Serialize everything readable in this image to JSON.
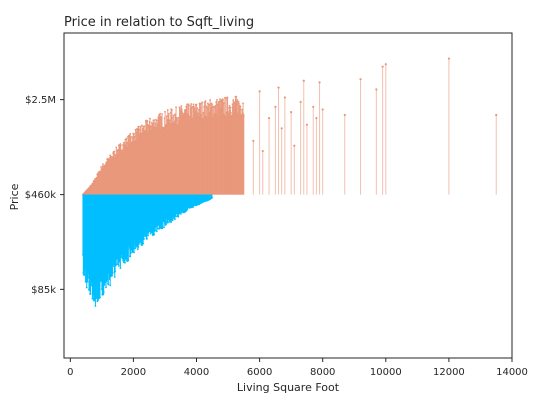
{
  "chart_data": {
    "type": "lollipop",
    "title": "Price in relation to Sqft_living",
    "xlabel": "Living Square Foot",
    "ylabel": "Price",
    "xlim": [
      -200,
      14000
    ],
    "y_scale": "log",
    "ylim": [
      25000,
      8200000
    ],
    "baseline": 460000,
    "x_ticks": [
      0,
      2000,
      4000,
      6000,
      8000,
      10000,
      12000,
      14000
    ],
    "x_tick_labels": [
      "0",
      "2000",
      "4000",
      "6000",
      "8000",
      "10000",
      "12000",
      "14000"
    ],
    "y_ticks": [
      85000,
      460000,
      2500000
    ],
    "y_tick_labels": [
      "$85k",
      "$460k",
      "$2.5M"
    ],
    "grid": false,
    "colors": {
      "above": "#e9967a",
      "below": "#00bfff",
      "axis": "#262626"
    },
    "upper_envelope": [
      [
        400,
        460000
      ],
      [
        700,
        560000
      ],
      [
        1000,
        780000
      ],
      [
        1500,
        1100000
      ],
      [
        2000,
        1450000
      ],
      [
        2500,
        1800000
      ],
      [
        3000,
        2050000
      ],
      [
        3500,
        2250000
      ],
      [
        4000,
        2400000
      ],
      [
        4500,
        2550000
      ],
      [
        5000,
        2650000
      ],
      [
        5500,
        2700000
      ]
    ],
    "lower_envelope": [
      [
        400,
        110000
      ],
      [
        600,
        75000
      ],
      [
        800,
        62000
      ],
      [
        1000,
        70000
      ],
      [
        1500,
        110000
      ],
      [
        2000,
        160000
      ],
      [
        2500,
        210000
      ],
      [
        3000,
        260000
      ],
      [
        3500,
        320000
      ],
      [
        4000,
        380000
      ],
      [
        4500,
        430000
      ]
    ],
    "outliers": [
      [
        5800,
        1200000
      ],
      [
        6000,
        2900000
      ],
      [
        6100,
        1000000
      ],
      [
        6300,
        1800000
      ],
      [
        6500,
        2200000
      ],
      [
        6600,
        3100000
      ],
      [
        6700,
        1500000
      ],
      [
        6800,
        2600000
      ],
      [
        7000,
        2000000
      ],
      [
        7100,
        1100000
      ],
      [
        7300,
        2400000
      ],
      [
        7400,
        3500000
      ],
      [
        7500,
        1600000
      ],
      [
        7700,
        2200000
      ],
      [
        7800,
        1800000
      ],
      [
        7900,
        3400000
      ],
      [
        8000,
        2100000
      ],
      [
        8700,
        1900000
      ],
      [
        9200,
        3600000
      ],
      [
        9700,
        3000000
      ],
      [
        9900,
        4500000
      ],
      [
        10000,
        4700000
      ],
      [
        12000,
        5200000
      ],
      [
        13500,
        1900000
      ]
    ]
  }
}
